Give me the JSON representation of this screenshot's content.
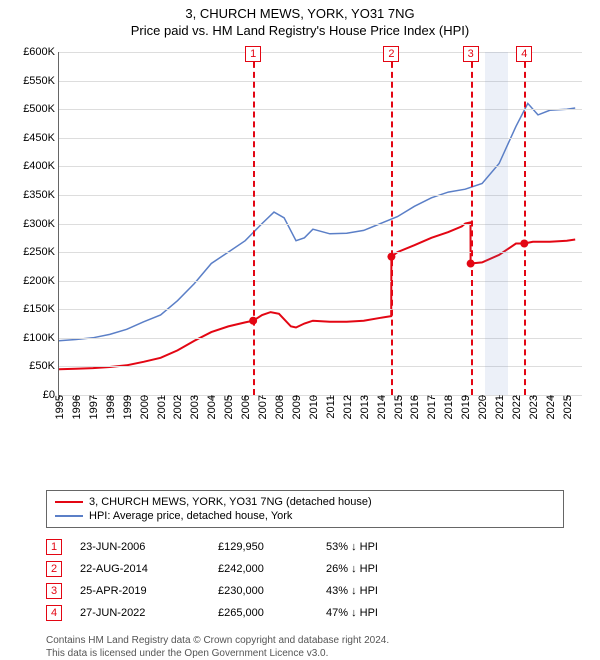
{
  "title": {
    "line1": "3, CHURCH MEWS, YORK, YO31 7NG",
    "line2": "Price paid vs. HM Land Registry's House Price Index (HPI)",
    "fontsize": 13
  },
  "chart": {
    "type": "line",
    "background_color": "#ffffff",
    "grid_color": "#dddddd",
    "axis_color": "#666666",
    "label_fontsize": 11,
    "x": {
      "min": 1995,
      "max": 2025.9,
      "ticks": [
        1995,
        1996,
        1997,
        1998,
        1999,
        2000,
        2001,
        2002,
        2003,
        2004,
        2005,
        2006,
        2007,
        2008,
        2009,
        2010,
        2011,
        2012,
        2013,
        2014,
        2015,
        2016,
        2017,
        2018,
        2019,
        2020,
        2021,
        2022,
        2023,
        2024,
        2025
      ]
    },
    "y": {
      "min": 0,
      "max": 600000,
      "tick_step": 50000,
      "currency_prefix": "£",
      "tick_labels": [
        "£0",
        "£50K",
        "£100K",
        "£150K",
        "£200K",
        "£250K",
        "£300K",
        "£350K",
        "£400K",
        "£450K",
        "£500K",
        "£550K",
        "£600K"
      ]
    },
    "shaded_bands": [
      {
        "start": 2020.15,
        "end": 2021.5
      }
    ],
    "markers": [
      {
        "n": "1",
        "x": 2006.47
      },
      {
        "n": "2",
        "x": 2014.64
      },
      {
        "n": "3",
        "x": 2019.32
      },
      {
        "n": "4",
        "x": 2022.49
      }
    ],
    "series": [
      {
        "id": "price_paid",
        "label": "3, CHURCH MEWS, YORK, YO31 7NG (detached house)",
        "color": "#e30613",
        "line_width": 2,
        "points": [
          [
            1995.0,
            45000
          ],
          [
            1996.0,
            46000
          ],
          [
            1997.0,
            47000
          ],
          [
            1998.0,
            49000
          ],
          [
            1999.0,
            52000
          ],
          [
            2000.0,
            58000
          ],
          [
            2001.0,
            65000
          ],
          [
            2002.0,
            78000
          ],
          [
            2003.0,
            95000
          ],
          [
            2004.0,
            110000
          ],
          [
            2005.0,
            120000
          ],
          [
            2006.0,
            127000
          ],
          [
            2006.47,
            129950
          ],
          [
            2006.47,
            129950
          ],
          [
            2007.0,
            140000
          ],
          [
            2007.5,
            145000
          ],
          [
            2008.0,
            142000
          ],
          [
            2008.7,
            120000
          ],
          [
            2009.0,
            118000
          ],
          [
            2009.5,
            125000
          ],
          [
            2010.0,
            130000
          ],
          [
            2011.0,
            128000
          ],
          [
            2012.0,
            128000
          ],
          [
            2013.0,
            130000
          ],
          [
            2014.0,
            135000
          ],
          [
            2014.63,
            138000
          ],
          [
            2014.64,
            242000
          ],
          [
            2015.0,
            250000
          ],
          [
            2016.0,
            262000
          ],
          [
            2017.0,
            275000
          ],
          [
            2018.0,
            285000
          ],
          [
            2018.8,
            295000
          ],
          [
            2019.0,
            300000
          ],
          [
            2019.31,
            302000
          ],
          [
            2019.32,
            230000
          ],
          [
            2020.0,
            232000
          ],
          [
            2021.0,
            245000
          ],
          [
            2022.0,
            265000
          ],
          [
            2022.49,
            265000
          ],
          [
            2023.0,
            268000
          ],
          [
            2024.0,
            268000
          ],
          [
            2025.0,
            270000
          ],
          [
            2025.5,
            272000
          ]
        ],
        "sale_points": [
          [
            2006.47,
            129950
          ],
          [
            2014.64,
            242000
          ],
          [
            2019.32,
            230000
          ],
          [
            2022.49,
            265000
          ]
        ]
      },
      {
        "id": "hpi",
        "label": "HPI: Average price, detached house, York",
        "color": "#5b7fc7",
        "line_width": 1.5,
        "points": [
          [
            1995.0,
            95000
          ],
          [
            1996.0,
            97000
          ],
          [
            1997.0,
            100000
          ],
          [
            1998.0,
            106000
          ],
          [
            1999.0,
            115000
          ],
          [
            2000.0,
            128000
          ],
          [
            2001.0,
            140000
          ],
          [
            2002.0,
            165000
          ],
          [
            2003.0,
            195000
          ],
          [
            2004.0,
            230000
          ],
          [
            2005.0,
            250000
          ],
          [
            2006.0,
            270000
          ],
          [
            2007.0,
            300000
          ],
          [
            2007.7,
            320000
          ],
          [
            2008.3,
            310000
          ],
          [
            2009.0,
            270000
          ],
          [
            2009.5,
            275000
          ],
          [
            2010.0,
            290000
          ],
          [
            2011.0,
            282000
          ],
          [
            2012.0,
            283000
          ],
          [
            2013.0,
            288000
          ],
          [
            2014.0,
            300000
          ],
          [
            2015.0,
            312000
          ],
          [
            2016.0,
            330000
          ],
          [
            2017.0,
            345000
          ],
          [
            2018.0,
            355000
          ],
          [
            2019.0,
            360000
          ],
          [
            2020.0,
            370000
          ],
          [
            2021.0,
            405000
          ],
          [
            2022.0,
            470000
          ],
          [
            2022.7,
            510000
          ],
          [
            2023.3,
            490000
          ],
          [
            2024.0,
            498000
          ],
          [
            2025.0,
            500000
          ],
          [
            2025.5,
            502000
          ]
        ]
      }
    ]
  },
  "legend": {
    "border_color": "#666666",
    "fontsize": 11
  },
  "sales": [
    {
      "n": "1",
      "date": "23-JUN-2006",
      "price": "£129,950",
      "pct": "53% ↓ HPI"
    },
    {
      "n": "2",
      "date": "22-AUG-2014",
      "price": "£242,000",
      "pct": "26% ↓ HPI"
    },
    {
      "n": "3",
      "date": "25-APR-2019",
      "price": "£230,000",
      "pct": "43% ↓ HPI"
    },
    {
      "n": "4",
      "date": "27-JUN-2022",
      "price": "£265,000",
      "pct": "47% ↓ HPI"
    }
  ],
  "footer": {
    "line1": "Contains HM Land Registry data © Crown copyright and database right 2024.",
    "line2": "This data is licensed under the Open Government Licence v3.0."
  }
}
